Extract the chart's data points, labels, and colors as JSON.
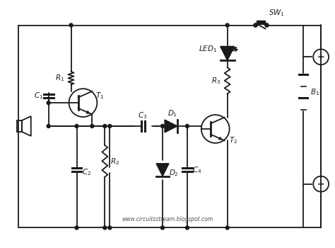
{
  "bg_color": "#ffffff",
  "line_color": "#1a1a1a",
  "watermark": "www.circuitsstream.blogspot.com",
  "figsize": [
    4.74,
    3.5
  ],
  "dpi": 100
}
